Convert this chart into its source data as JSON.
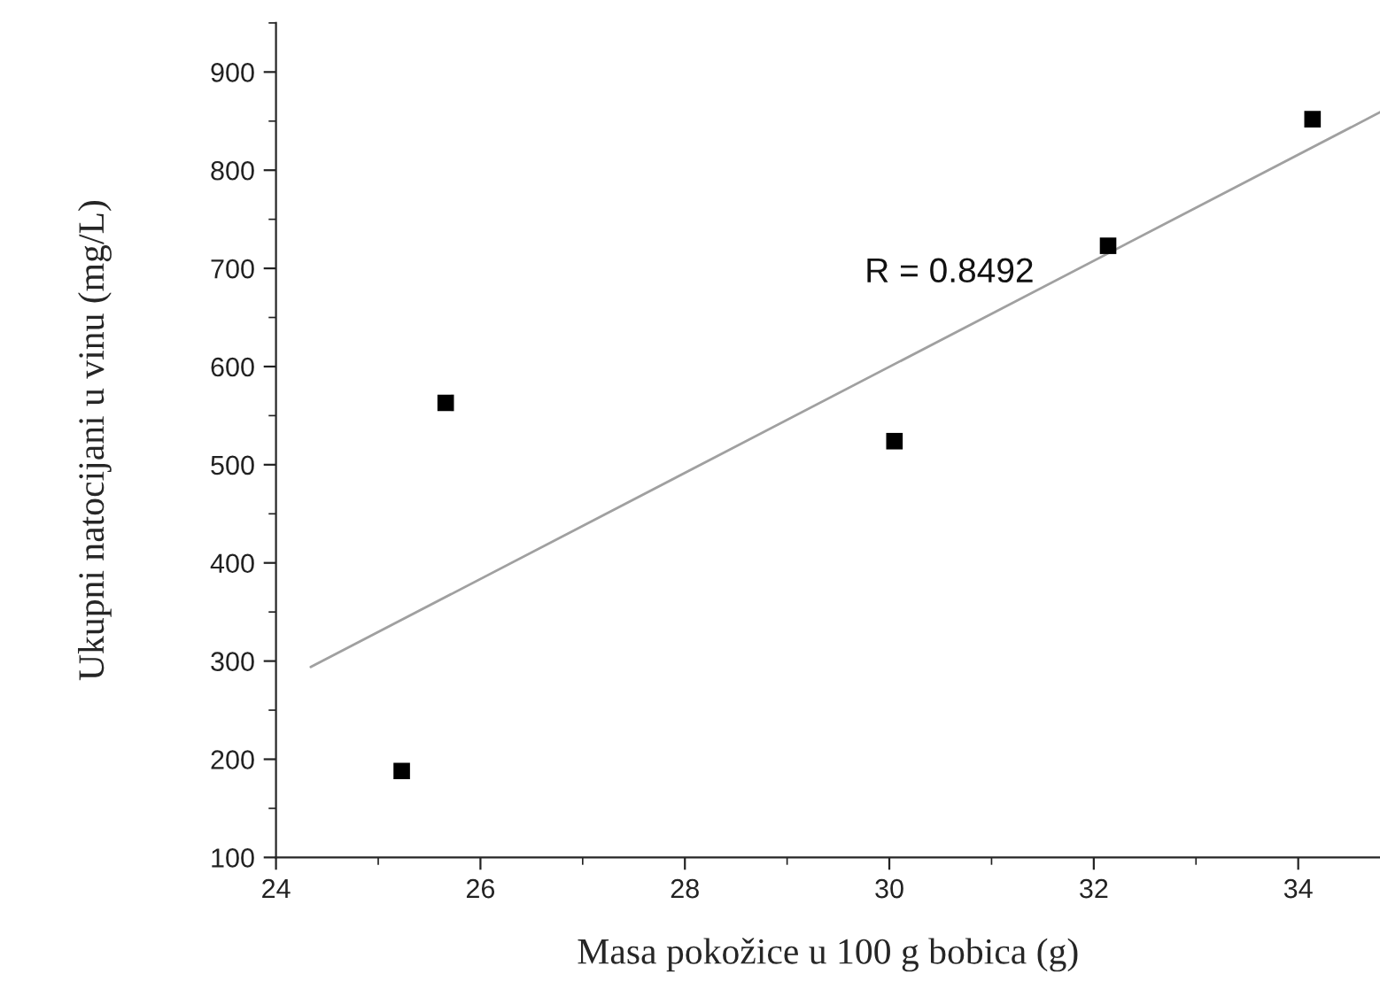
{
  "chart_data": {
    "type": "scatter",
    "xlabel": "Masa pokožice u 100 g bobica (g)",
    "ylabel": "Ukupni natocijani u vinu (mg/L)",
    "xlim": [
      24,
      34.8
    ],
    "xticks": [
      24,
      26,
      28,
      30,
      32,
      34
    ],
    "ylim": [
      100,
      950
    ],
    "yticks": [
      100,
      200,
      300,
      400,
      500,
      600,
      700,
      800,
      900
    ],
    "grid": false,
    "legend": false,
    "series": [
      {
        "marker": "square",
        "color": "#000000",
        "x": [
          25.23,
          25.66,
          30.05,
          32.14,
          34.14
        ],
        "values": [
          188,
          563,
          524,
          723,
          852
        ]
      },
      {
        "type": "line",
        "marker": "none",
        "color": "#a0a0a0",
        "x": [
          24.34,
          34.8
        ],
        "values": [
          294,
          859
        ]
      }
    ],
    "annotations": [
      "R = 0.8492"
    ]
  }
}
